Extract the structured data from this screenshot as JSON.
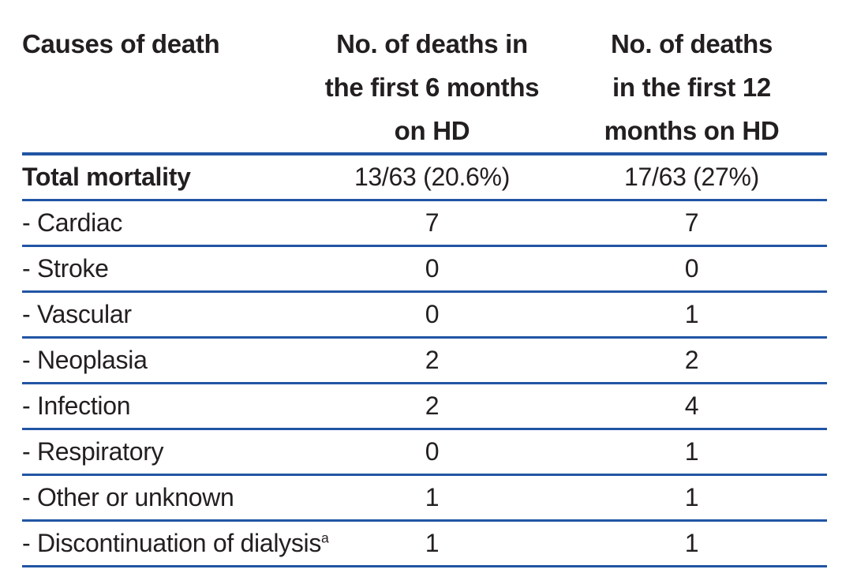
{
  "colors": {
    "rule_blue": "#2155a4",
    "text": "#231f20",
    "background": "#ffffff"
  },
  "table": {
    "columns": [
      {
        "label": "Causes of death"
      },
      {
        "label": "No. of deaths in\nthe first 6 months\non HD"
      },
      {
        "label": "No. of deaths\nin the first 12\nmonths on HD"
      }
    ],
    "rows": [
      {
        "label": "Total mortality",
        "deaths_6mo": "13/63 (20.6%)",
        "deaths_12mo": "17/63 (27%)",
        "emphasis": "bold"
      },
      {
        "label": "- Cardiac",
        "deaths_6mo": "7",
        "deaths_12mo": "7"
      },
      {
        "label": "- Stroke",
        "deaths_6mo": "0",
        "deaths_12mo": "0"
      },
      {
        "label": "- Vascular",
        "deaths_6mo": "0",
        "deaths_12mo": "1"
      },
      {
        "label": "- Neoplasia",
        "deaths_6mo": "2",
        "deaths_12mo": "2"
      },
      {
        "label": "- Infection",
        "deaths_6mo": "2",
        "deaths_12mo": "4"
      },
      {
        "label": "- Respiratory",
        "deaths_6mo": "0",
        "deaths_12mo": "1"
      },
      {
        "label": "- Other or unknown",
        "deaths_6mo": "1",
        "deaths_12mo": "1"
      },
      {
        "label": "- Discontinuation of dialysis",
        "footnote_marker": "a",
        "deaths_6mo": "1",
        "deaths_12mo": "1"
      }
    ]
  }
}
